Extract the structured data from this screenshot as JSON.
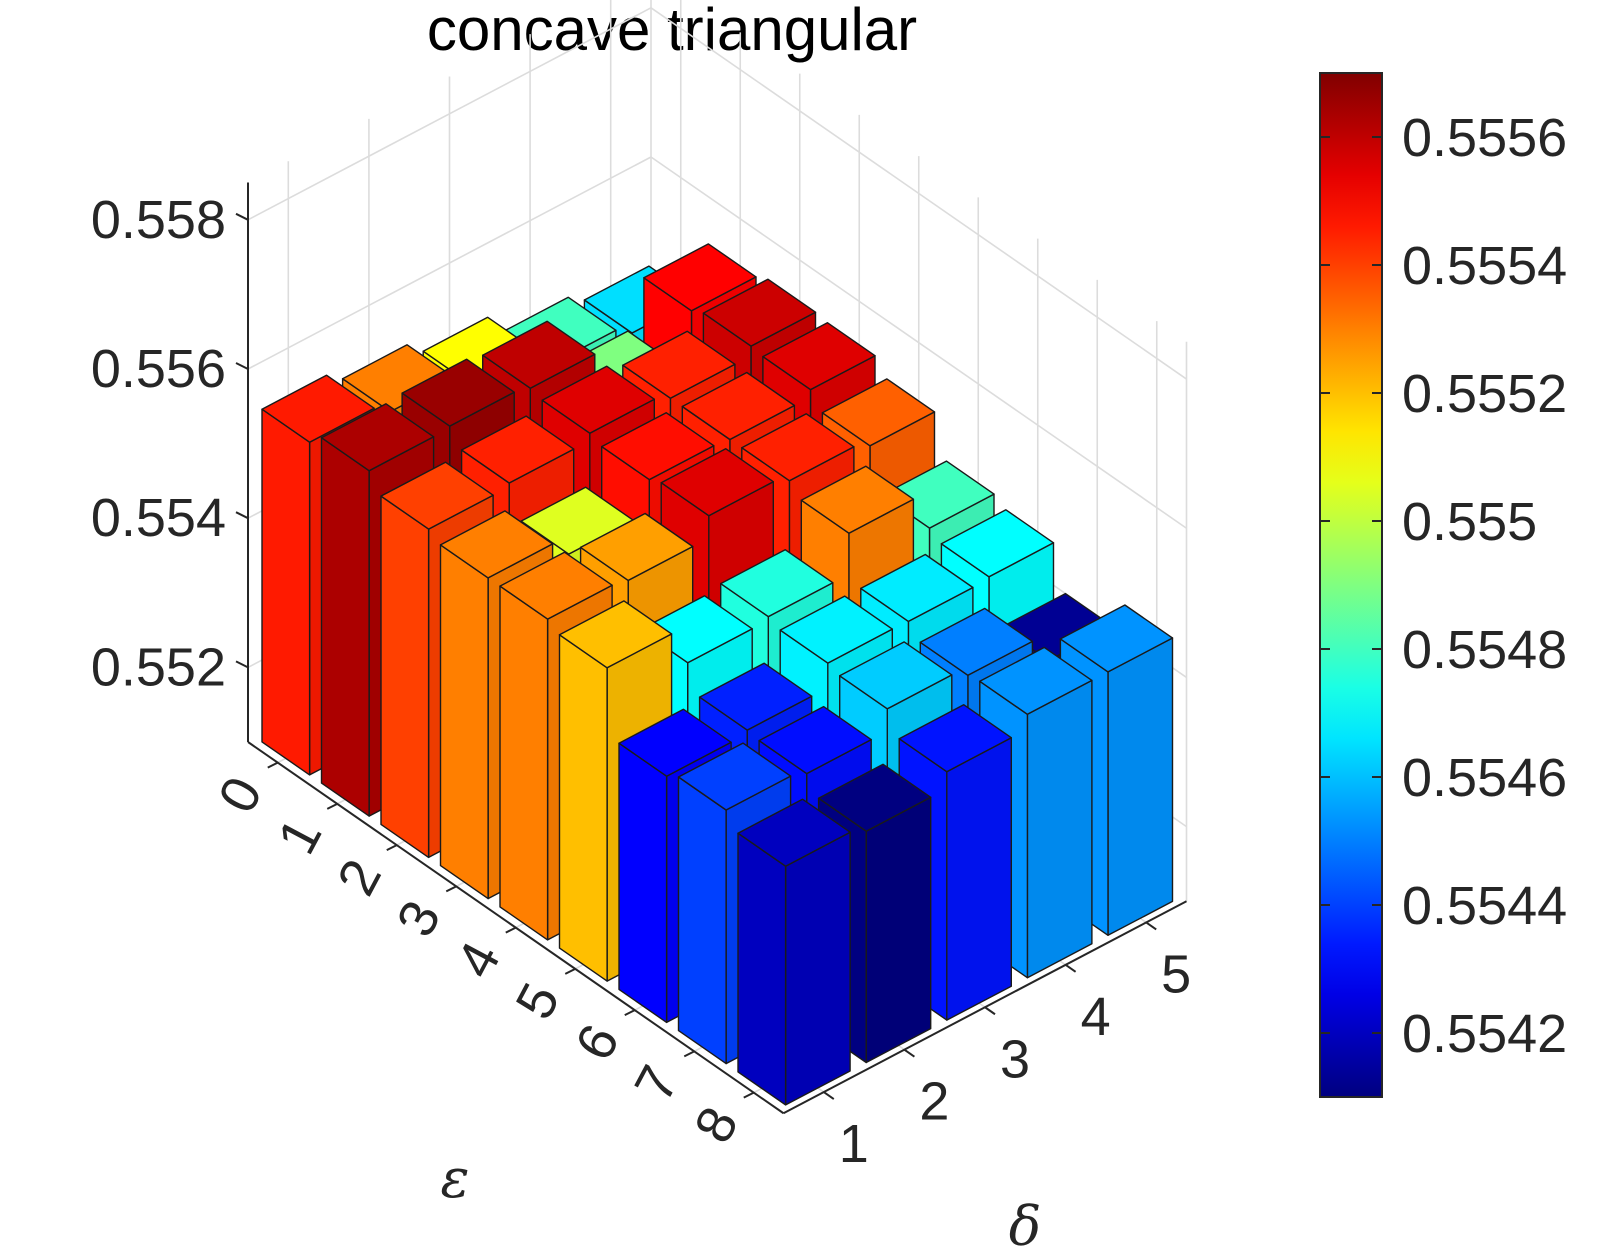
{
  "chart_data": {
    "type": "bar3d",
    "title": "concave triangular",
    "xlabel": "ε",
    "ylabel": "δ",
    "zlabel": "",
    "x_categories": [
      "0",
      "1",
      "2",
      "3",
      "4",
      "5",
      "6",
      "7",
      "8"
    ],
    "y_categories": [
      "1",
      "2",
      "3",
      "4",
      "5"
    ],
    "zlim": [
      0.551,
      0.5585
    ],
    "z_ticks": [
      "0.552",
      "0.554",
      "0.556",
      "0.558"
    ],
    "colormap": "jet",
    "clim": [
      0.5541,
      0.5557
    ],
    "colorbar_ticks": [
      "0.5542",
      "0.5544",
      "0.5546",
      "0.5548",
      "0.555",
      "0.5552",
      "0.5554",
      "0.5556"
    ],
    "grid": true,
    "values": [
      [
        0.55546,
        0.5553,
        0.5551,
        0.5548,
        0.55465
      ],
      [
        0.55563,
        0.55566,
        0.5556,
        0.5549,
        0.5555
      ],
      [
        0.5554,
        0.55545,
        0.55555,
        0.55545,
        0.55558
      ],
      [
        0.5553,
        0.55505,
        0.55548,
        0.55545,
        0.55555
      ],
      [
        0.5553,
        0.55525,
        0.55555,
        0.55545,
        0.55535
      ],
      [
        0.5552,
        0.5547,
        0.55475,
        0.5553,
        0.5548
      ],
      [
        0.5543,
        0.55435,
        0.55468,
        0.55467,
        0.5547
      ],
      [
        0.5544,
        0.55432,
        0.55462,
        0.5545,
        0.55413
      ],
      [
        0.5542,
        0.5541,
        0.55433,
        0.55453,
        0.55453
      ]
    ]
  }
}
